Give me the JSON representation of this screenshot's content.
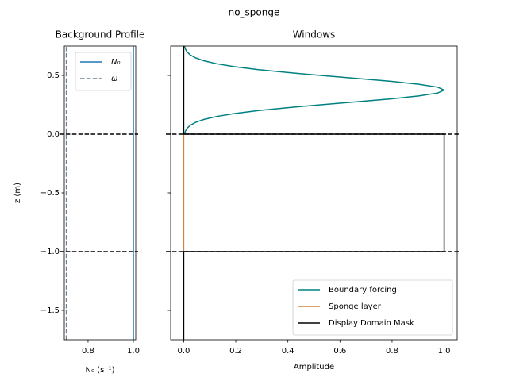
{
  "title": "no_sponge",
  "chart_data": [
    {
      "type": "line",
      "title": "Background Profile",
      "x_label": "N₀ (s⁻¹)",
      "y_label": "z (m)",
      "xlim": [
        0.695,
        1.0105
      ],
      "xticks": [
        0.8,
        {
          "value": 1.0,
          "label": "1.0"
        }
      ],
      "ylim": [
        -1.75,
        0.75
      ],
      "yticks": [
        {
          "value": -1.5,
          "label": "−1.5"
        },
        {
          "value": -1.0,
          "label": "−1.0"
        },
        {
          "value": -0.5,
          "label": "−0.5"
        },
        {
          "value": 0.0,
          "label": "0.0"
        },
        0.5
      ],
      "ytick_labels": true,
      "series": [
        {
          "name": "N₀",
          "color": "#1f77b4",
          "dashed": false,
          "x": [
            1.0,
            1.0
          ],
          "values": [
            -1.75,
            0.75
          ]
        },
        {
          "name": "ω",
          "color": "#708090",
          "dashed": true,
          "x": [
            0.704,
            0.704
          ],
          "values": [
            -1.75,
            0.75
          ]
        }
      ],
      "hlines": [
        0.0,
        -1.0
      ],
      "legend": "upper right"
    },
    {
      "type": "line",
      "title": "Windows",
      "x_label": "Amplitude",
      "xlim": [
        -0.05,
        1.05
      ],
      "xticks": [
        {
          "value": 0.0,
          "label": "0.0"
        },
        0.2,
        0.4,
        0.6,
        0.8,
        {
          "value": 1.0,
          "label": "1.0"
        }
      ],
      "ylim": [
        -1.75,
        0.75
      ],
      "yticks": [
        -1.5,
        -1.0,
        -0.5,
        0.0,
        0.5
      ],
      "ytick_labels": false,
      "series": [
        {
          "name": "Boundary forcing",
          "color": "#008080",
          "dashed": false,
          "x": [
            0.0031,
            0.0065,
            0.013,
            0.025,
            0.045,
            0.077,
            0.125,
            0.193,
            0.284,
            0.397,
            0.526,
            0.663,
            0.794,
            0.902,
            0.975,
            1.0,
            0.975,
            0.902,
            0.794,
            0.663,
            0.526,
            0.397,
            0.284,
            0.193,
            0.125,
            0.077,
            0.045,
            0.025,
            0.013,
            0.0065,
            0.0031
          ],
          "values": [
            0.0,
            0.025,
            0.05,
            0.075,
            0.1,
            0.125,
            0.15,
            0.175,
            0.2,
            0.225,
            0.25,
            0.275,
            0.3,
            0.325,
            0.35,
            0.375,
            0.4,
            0.425,
            0.45,
            0.475,
            0.5,
            0.525,
            0.55,
            0.575,
            0.6,
            0.625,
            0.65,
            0.675,
            0.7,
            0.725,
            0.75
          ]
        },
        {
          "name": "Sponge layer",
          "color": "#cd853f",
          "dashed": false,
          "x": [
            0.0,
            0.0
          ],
          "values": [
            -1.0,
            0.0
          ]
        },
        {
          "name": "Display Domain Mask",
          "color": "#000000",
          "dashed": false,
          "x": [
            0.0,
            0.0,
            1.0,
            1.0,
            0.0,
            0.0
          ],
          "values": [
            -1.75,
            -1.0,
            -1.0,
            0.0,
            0.0,
            0.75
          ]
        }
      ],
      "hlines": [
        0.0,
        -1.0
      ],
      "legend": "lower right"
    }
  ]
}
